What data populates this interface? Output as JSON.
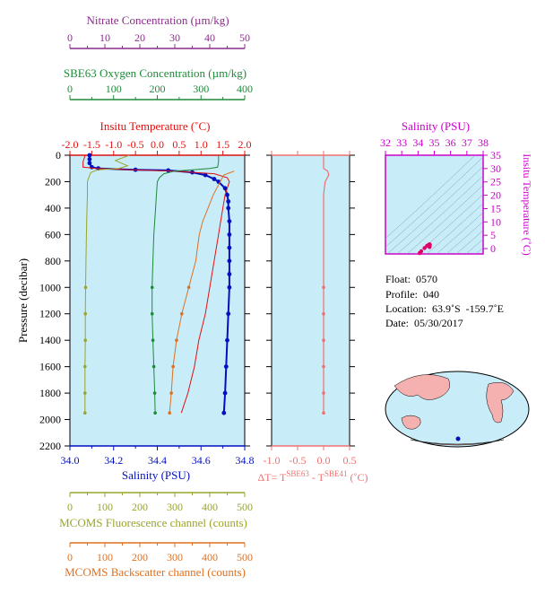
{
  "colors": {
    "nitrate": "#8a2f8a",
    "oxygen": "#1f8a3a",
    "temperature": "#e01010",
    "salinity": "#0010c0",
    "fluorescence": "#9aa52a",
    "backscatter": "#e0701f",
    "delta_t": "#f07070",
    "ts_axis": "#cc00cc",
    "panel_bg": "#c8ecf8"
  },
  "axes": {
    "nitrate": {
      "label": "Nitrate Concentration (µm/kg)",
      "ticks": [
        "0",
        "10",
        "20",
        "30",
        "40",
        "50"
      ]
    },
    "oxygen": {
      "label": "SBE63 Oxygen Concentration (µm/kg)",
      "ticks": [
        "0",
        "100",
        "200",
        "300",
        "400"
      ]
    },
    "temperature": {
      "label": "Insitu Temperature (˚C)",
      "ticks": [
        "-2.0",
        "-1.5",
        "-1.0",
        "-0.5",
        "0.0",
        "0.5",
        "1.0",
        "1.5",
        "2.0"
      ]
    },
    "pressure": {
      "label": "Pressure (decibar)",
      "ticks": [
        "0",
        "200",
        "400",
        "600",
        "800",
        "1000",
        "1200",
        "1400",
        "1600",
        "1800",
        "2000",
        "2200"
      ]
    },
    "salinity_bottom": {
      "label": "Salinity (PSU)",
      "ticks": [
        "34.0",
        "34.2",
        "34.4",
        "34.6",
        "34.8"
      ]
    },
    "delta_t": {
      "label": "ΔT= TSBE63 - TSBE41 (˚C)",
      "label_prefix": "ΔT= T",
      "label_sup1": "SBE63",
      "label_mid": " - T",
      "label_sup2": "SBE41",
      "label_suffix": " (˚C)",
      "ticks": [
        "-1.0",
        "-0.5",
        "0.0",
        "0.5"
      ]
    },
    "fluorescence": {
      "label": "MCOMS Fluorescence channel (counts)",
      "ticks": [
        "0",
        "100",
        "200",
        "300",
        "400",
        "500"
      ]
    },
    "backscatter": {
      "label": "MCOMS Backscatter channel (counts)",
      "ticks": [
        "0",
        "100",
        "200",
        "300",
        "400",
        "500"
      ]
    },
    "ts_salinity": {
      "label": "Salinity (PSU)",
      "ticks": [
        "32",
        "33",
        "34",
        "35",
        "36",
        "37",
        "38"
      ]
    },
    "ts_temperature": {
      "label": "Insitu Temperature (˚C)",
      "ticks": [
        "0",
        "5",
        "10",
        "15",
        "20",
        "25",
        "30",
        "35"
      ]
    }
  },
  "info": {
    "float": "Float:  0570",
    "profile": "Profile:  040",
    "location": "Location:  63.9˚S  -159.7˚E",
    "date": "Date:  05/30/2017"
  },
  "chart_data": [
    {
      "type": "line",
      "title": "",
      "ylabel": "Pressure (decibar)",
      "ylim": [
        2200,
        0
      ],
      "series": [
        {
          "name": "Salinity",
          "axis": "salinity",
          "xlim": [
            34.0,
            34.8
          ],
          "pressure": [
            0,
            30,
            60,
            90,
            100,
            110,
            115,
            130,
            150,
            180,
            200,
            250,
            300,
            350,
            400,
            500,
            600,
            700,
            800,
            900,
            1000,
            1200,
            1400,
            1600,
            1800,
            1950
          ],
          "values": [
            34.09,
            34.09,
            34.09,
            34.1,
            34.13,
            34.3,
            34.45,
            34.56,
            34.62,
            34.66,
            34.68,
            34.71,
            34.72,
            34.725,
            34.725,
            34.73,
            34.73,
            34.73,
            34.73,
            34.73,
            34.73,
            34.725,
            34.72,
            34.715,
            34.71,
            34.705
          ]
        },
        {
          "name": "Temperature",
          "axis": "temperature",
          "xlim": [
            -2.0,
            2.0
          ],
          "pressure": [
            0,
            50,
            90,
            100,
            110,
            120,
            140,
            170,
            200,
            250,
            300,
            400,
            500,
            600,
            800,
            1000,
            1200,
            1400,
            1600,
            1800,
            1950
          ],
          "values": [
            -1.65,
            -1.7,
            -1.7,
            -1.4,
            -0.6,
            0.4,
            1.3,
            1.6,
            1.65,
            1.6,
            1.55,
            1.5,
            1.45,
            1.4,
            1.3,
            1.2,
            1.1,
            0.95,
            0.85,
            0.7,
            0.55
          ]
        },
        {
          "name": "Oxygen",
          "axis": "oxygen",
          "xlim": [
            0,
            400
          ],
          "pressure": [
            0,
            50,
            90,
            100,
            110,
            120,
            140,
            170,
            200,
            300,
            400,
            600,
            800,
            1000,
            1200,
            1400,
            1600,
            1800,
            1950
          ],
          "values": [
            340,
            340,
            338,
            320,
            280,
            240,
            215,
            205,
            200,
            198,
            196,
            192,
            190,
            188,
            188,
            190,
            192,
            194,
            195
          ]
        },
        {
          "name": "Fluorescence",
          "axis": "fluorescence",
          "xlim": [
            0,
            500
          ],
          "pressure": [
            0,
            40,
            80,
            100,
            110,
            130,
            160,
            200,
            300,
            500,
            800,
            1000,
            1200,
            1400,
            1600,
            1800,
            1950
          ],
          "values": [
            170,
            130,
            165,
            140,
            80,
            60,
            55,
            50,
            50,
            48,
            46,
            45,
            44,
            44,
            43,
            43,
            43
          ]
        },
        {
          "name": "Backscatter",
          "axis": "backscatter",
          "xlim": [
            0,
            500
          ],
          "pressure": [
            120,
            150,
            200,
            250,
            300,
            400,
            500,
            600,
            700,
            800,
            900,
            1000,
            1200,
            1400,
            1600,
            1800,
            1950
          ],
          "values": [
            470,
            440,
            430,
            420,
            410,
            395,
            380,
            370,
            365,
            360,
            350,
            340,
            320,
            305,
            295,
            290,
            285
          ]
        },
        {
          "name": "Nitrate",
          "axis": "nitrate",
          "xlim": [
            0,
            50
          ],
          "pressure": [],
          "values": []
        }
      ]
    },
    {
      "type": "line",
      "xlabel": "ΔT= TSBE63 - TSBE41 (˚C)",
      "xlim": [
        -1.0,
        0.5
      ],
      "ylim": [
        2200,
        0
      ],
      "series": [
        {
          "name": "ΔT",
          "pressure": [
            0,
            50,
            100,
            120,
            150,
            200,
            300,
            500,
            800,
            1000,
            1200,
            1400,
            1600,
            1800,
            1950
          ],
          "values": [
            0.0,
            0.0,
            0.0,
            0.08,
            0.1,
            0.03,
            0.0,
            0.0,
            0.0,
            0.0,
            0.0,
            0.0,
            0.0,
            0.0,
            0.0
          ]
        }
      ]
    },
    {
      "type": "scatter",
      "xlabel": "Salinity (PSU)",
      "ylabel": "Insitu Temperature (˚C)",
      "xlim": [
        32,
        38
      ],
      "ylim": [
        -2,
        35
      ],
      "series": [
        {
          "name": "T-S",
          "x": [
            34.1,
            34.12,
            34.2,
            34.4,
            34.55,
            34.65,
            34.7,
            34.72,
            34.73,
            34.72,
            34.71
          ],
          "y": [
            -1.7,
            -1.6,
            -1.0,
            0.2,
            1.0,
            1.4,
            1.6,
            1.55,
            1.4,
            1.0,
            0.6
          ]
        }
      ]
    }
  ]
}
